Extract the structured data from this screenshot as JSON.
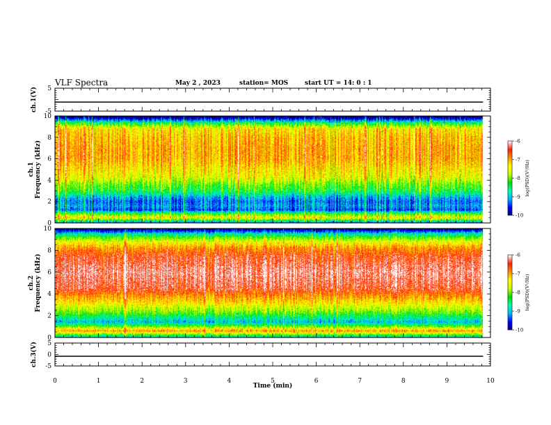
{
  "header": {
    "title": "VLF Spectra",
    "date": "May 2 , 2023",
    "station": "station= MOS",
    "start_time": "start UT = 14: 0 : 1"
  },
  "chart_data": [
    {
      "type": "line",
      "panel": "ch1-waveform",
      "ylabel": "ch.1(V)",
      "ylim": [
        -5,
        5
      ],
      "yticks": [
        "5",
        "-5"
      ],
      "series": [
        {
          "x": [
            0,
            9.83
          ],
          "y": [
            0,
            0
          ]
        }
      ]
    },
    {
      "type": "heatmap",
      "panel": "ch1-spectrogram",
      "ylabel": "ch.1 Frequency (kHz)",
      "ylim": [
        0,
        10
      ],
      "yticks": [
        "0",
        "2",
        "4",
        "6",
        "8",
        "10"
      ],
      "xlim": [
        0,
        9.83
      ],
      "colorbar": {
        "label": "log(PSD)(V²/Hz)",
        "min": -10,
        "max": -6,
        "ticks": [
          "-6",
          "-7",
          "-8",
          "-9",
          "-10"
        ]
      },
      "profile_log_psd": [
        [
          0.0,
          -9.3
        ],
        [
          0.5,
          -7.3
        ],
        [
          0.9,
          -8.3
        ],
        [
          1.2,
          -9.4
        ],
        [
          1.6,
          -9.1
        ],
        [
          2.0,
          -9.3
        ],
        [
          2.4,
          -9.0
        ],
        [
          3.0,
          -8.3
        ],
        [
          3.6,
          -8.0
        ],
        [
          4.2,
          -7.5
        ],
        [
          5.0,
          -7.3
        ],
        [
          6.0,
          -7.0
        ],
        [
          7.0,
          -7.0
        ],
        [
          8.0,
          -7.1
        ],
        [
          8.8,
          -7.3
        ],
        [
          9.3,
          -8.3
        ],
        [
          9.6,
          -9.2
        ],
        [
          9.85,
          -10
        ]
      ]
    },
    {
      "type": "heatmap",
      "panel": "ch2-spectrogram",
      "ylabel": "ch.2 Frequency (kHz)",
      "ylim": [
        0,
        10
      ],
      "yticks": [
        "0",
        "2",
        "4",
        "6",
        "8",
        "10"
      ],
      "xlim": [
        0,
        9.83
      ],
      "colorbar": {
        "label": "log(PSD)(V²/Hz)",
        "min": -10,
        "max": -6,
        "ticks": [
          "-6",
          "-7",
          "-8",
          "-9",
          "-10"
        ]
      },
      "profile_log_psd": [
        [
          0.0,
          -9.0
        ],
        [
          0.6,
          -6.9
        ],
        [
          1.0,
          -8.0
        ],
        [
          1.4,
          -9.0
        ],
        [
          1.8,
          -8.6
        ],
        [
          2.3,
          -8.0
        ],
        [
          2.8,
          -7.6
        ],
        [
          3.3,
          -7.2
        ],
        [
          3.8,
          -6.9
        ],
        [
          4.5,
          -6.4
        ],
        [
          6.0,
          -6.2
        ],
        [
          7.5,
          -6.5
        ],
        [
          8.2,
          -6.9
        ],
        [
          8.7,
          -7.4
        ],
        [
          9.2,
          -8.1
        ],
        [
          9.6,
          -9.0
        ],
        [
          9.85,
          -9.8
        ]
      ]
    },
    {
      "type": "line",
      "panel": "ch3-waveform",
      "ylabel": "ch.3(V)",
      "ylim": [
        -5,
        5
      ],
      "yticks": [
        "5",
        "0",
        "-5"
      ],
      "series": [
        {
          "x": [
            0,
            9.83
          ],
          "y": [
            0,
            0
          ]
        }
      ]
    }
  ],
  "xaxis": {
    "label": "Time (min)",
    "range": [
      0,
      10
    ],
    "ticks": [
      "0",
      "1",
      "2",
      "3",
      "4",
      "5",
      "6",
      "7",
      "8",
      "9",
      "10"
    ]
  },
  "colors": {
    "colormap": [
      "#00007a",
      "#0000ff",
      "#00b4ff",
      "#00ffb0",
      "#00e000",
      "#c8ff00",
      "#ffff00",
      "#ff9000",
      "#ff2000",
      "#ffffff"
    ]
  }
}
